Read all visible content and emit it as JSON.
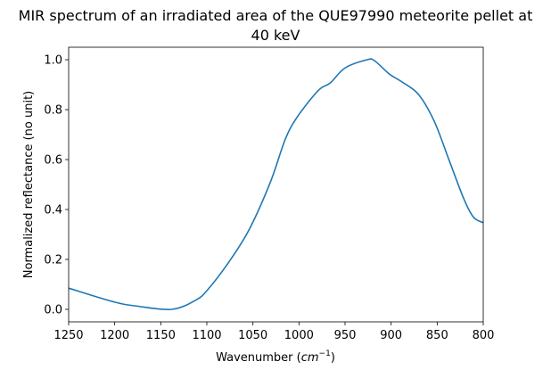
{
  "chart_data": {
    "type": "line",
    "title_lines": [
      "MIR spectrum of an irradiated area of the QUE97990 meteorite pellet at",
      "40 keV"
    ],
    "xlabel": "Wavenumber",
    "xlabel_unit_base": "cm",
    "xlabel_unit_exp": "−1",
    "ylabel": "Normalized reflectance (no unit)",
    "xlim": [
      1250,
      800
    ],
    "ylim": [
      -0.05,
      1.05
    ],
    "x_reversed": true,
    "grid": false,
    "xticks": [
      1250,
      1200,
      1150,
      1100,
      1050,
      1000,
      950,
      900,
      850,
      800
    ],
    "yticks": [
      0.0,
      0.2,
      0.4,
      0.6,
      0.8,
      1.0
    ],
    "ytick_labels": [
      "0.0",
      "0.2",
      "0.4",
      "0.6",
      "0.8",
      "1.0"
    ],
    "series": [
      {
        "color": "#1f77b4",
        "x": [
          1250,
          1202,
          1176,
          1138,
          1112,
          1099,
          1076,
          1054,
          1031,
          1015,
          1002,
          979,
          966,
          950,
          926,
          918,
          902,
          889,
          870,
          853,
          837,
          821,
          811,
          802,
          800
        ],
        "y": [
          0.085,
          0.031,
          0.013,
          0.0,
          0.037,
          0.079,
          0.19,
          0.32,
          0.51,
          0.68,
          0.77,
          0.877,
          0.907,
          0.967,
          1.0,
          0.996,
          0.943,
          0.913,
          0.86,
          0.752,
          0.597,
          0.442,
          0.371,
          0.35,
          0.35
        ]
      }
    ]
  }
}
